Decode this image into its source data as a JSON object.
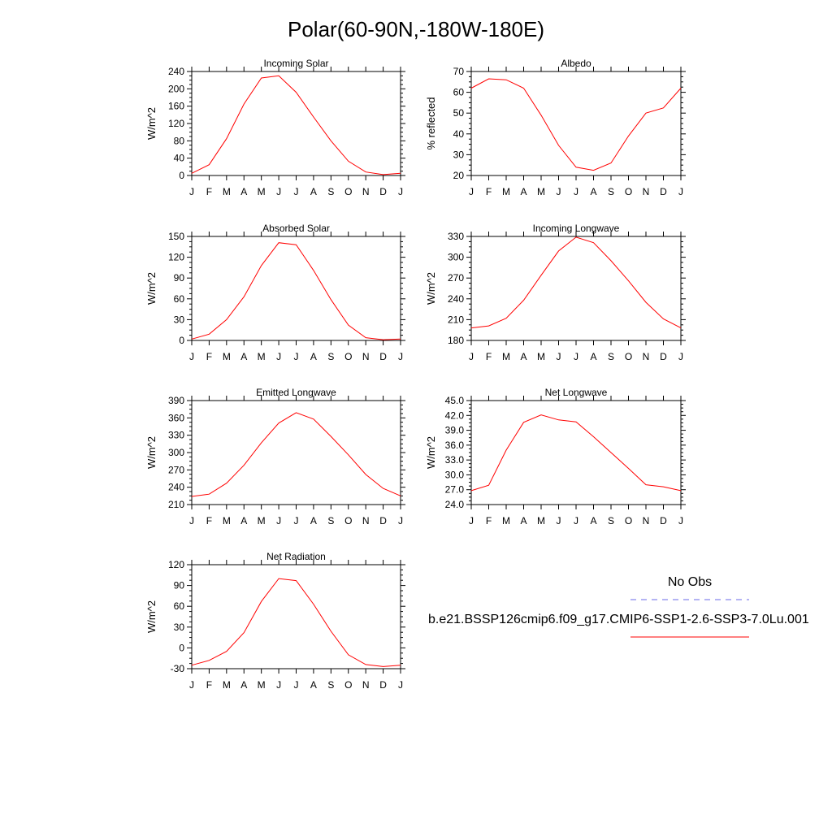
{
  "title": "Polar(60-90N,-180W-180E)",
  "months": [
    "J",
    "F",
    "M",
    "A",
    "M",
    "J",
    "J",
    "A",
    "S",
    "O",
    "N",
    "D",
    "J"
  ],
  "colors": {
    "model": "#ff0000",
    "obs": "#6a6ae8",
    "axis": "#000000"
  },
  "legend": {
    "obs_label": "No Obs",
    "model_label": "b.e21.BSSP126cmip6.f09_g17.CMIP6-SSP1-2.6-SSP3-7.0Lu.001"
  },
  "chart_data": [
    {
      "type": "line",
      "title": "Incoming Solar",
      "ylabel": "W/m^2",
      "ylim": [
        0,
        240
      ],
      "yticks": [
        "0",
        "40",
        "80",
        "120",
        "160",
        "200",
        "240"
      ],
      "series": [
        {
          "values": [
            5,
            25,
            85,
            165,
            225,
            230,
            192,
            135,
            80,
            33,
            8,
            2,
            5
          ]
        }
      ]
    },
    {
      "type": "line",
      "title": "Albedo",
      "ylabel": "% reflected",
      "ylim": [
        20,
        70
      ],
      "yticks": [
        "20",
        "30",
        "40",
        "50",
        "60",
        "70"
      ],
      "series": [
        {
          "values": [
            62,
            66.5,
            66,
            62,
            49,
            34.5,
            24,
            22.5,
            26,
            39,
            50,
            52.5,
            62
          ]
        }
      ]
    },
    {
      "type": "line",
      "title": "Absorbed Solar",
      "ylabel": "W/m^2",
      "ylim": [
        0,
        150
      ],
      "yticks": [
        "0",
        "30",
        "60",
        "90",
        "120",
        "150"
      ],
      "series": [
        {
          "values": [
            2,
            9,
            30,
            63,
            108,
            141,
            138,
            101,
            59,
            22,
            4,
            1,
            2
          ]
        }
      ]
    },
    {
      "type": "line",
      "title": "Incoming Longwave",
      "ylabel": "W/m^2",
      "ylim": [
        180,
        330
      ],
      "yticks": [
        "180",
        "210",
        "240",
        "270",
        "300",
        "330"
      ],
      "series": [
        {
          "values": [
            198,
            201,
            212,
            238,
            274,
            309,
            329,
            321,
            295,
            266,
            235,
            211,
            198
          ]
        }
      ]
    },
    {
      "type": "line",
      "title": "Emitted Longwave",
      "ylabel": "W/m^2",
      "ylim": [
        210,
        390
      ],
      "yticks": [
        "210",
        "240",
        "270",
        "300",
        "330",
        "360",
        "390"
      ],
      "series": [
        {
          "values": [
            224,
            228,
            247,
            278,
            317,
            351,
            369,
            358,
            328,
            296,
            262,
            238,
            225
          ]
        }
      ]
    },
    {
      "type": "line",
      "title": "Net Longwave",
      "ylabel": "W/m^2",
      "ylim": [
        24,
        45
      ],
      "yticks": [
        "24.0",
        "27.0",
        "30.0",
        "33.0",
        "36.0",
        "39.0",
        "42.0",
        "45.0"
      ],
      "series": [
        {
          "values": [
            26.8,
            27.9,
            35.0,
            40.6,
            42.1,
            41.1,
            40.7,
            37.7,
            34.5,
            31.3,
            28.0,
            27.6,
            26.8
          ]
        }
      ]
    },
    {
      "type": "line",
      "title": "Net Radiation",
      "ylabel": "W/m^2",
      "ylim": [
        -30,
        120
      ],
      "yticks": [
        "-30",
        "0",
        "30",
        "60",
        "90",
        "120"
      ],
      "series": [
        {
          "values": [
            -25,
            -18,
            -5,
            22,
            67,
            100,
            97,
            63,
            24,
            -10,
            -24,
            -27,
            -25
          ]
        }
      ]
    }
  ]
}
